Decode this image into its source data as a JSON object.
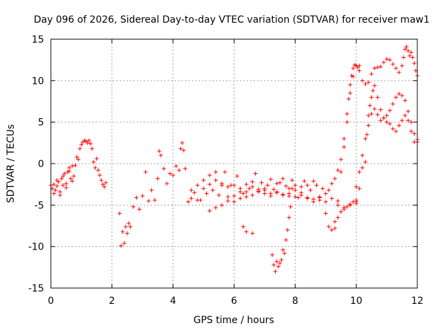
{
  "chart_data": {
    "type": "scatter",
    "title": "Day 096 of 2026, Sidereal Day-to-day VTEC variation (SDTVAR) for receiver maw1",
    "xlabel": "GPS time / hours",
    "ylabel": "SDTVAR / TECUs",
    "xlim": [
      0,
      12
    ],
    "ylim": [
      -15,
      15
    ],
    "xticks": [
      0,
      2,
      4,
      6,
      8,
      10,
      12
    ],
    "yticks": [
      -15,
      -10,
      -5,
      0,
      5,
      10,
      15
    ],
    "grid": true,
    "marker": "+",
    "color": "#ff0000",
    "series": [
      {
        "name": "SDTVAR",
        "x": [
          0.0,
          0.05,
          0.1,
          0.15,
          0.2,
          0.25,
          0.3,
          0.35,
          0.4,
          0.45,
          0.5,
          0.55,
          0.6,
          0.65,
          0.7,
          0.75,
          0.8,
          0.85,
          0.9,
          0.95,
          1.0,
          1.05,
          1.1,
          1.15,
          1.2,
          1.25,
          1.3,
          1.35,
          1.4,
          1.45,
          1.5,
          1.55,
          1.6,
          1.65,
          1.7,
          1.75,
          1.8,
          0.1,
          0.2,
          0.3,
          0.4,
          0.5,
          0.6,
          0.7,
          2.25,
          2.3,
          2.35,
          2.4,
          2.45,
          2.5,
          2.55,
          2.6,
          2.7,
          2.8,
          2.9,
          3.0,
          3.1,
          3.2,
          3.3,
          3.4,
          3.5,
          3.55,
          3.6,
          3.7,
          3.8,
          3.9,
          4.0,
          4.1,
          4.2,
          4.25,
          4.3,
          4.35,
          4.4,
          4.5,
          4.6,
          4.7,
          4.8,
          4.9,
          5.0,
          5.1,
          5.2,
          5.3,
          5.4,
          5.5,
          5.6,
          5.7,
          5.8,
          5.9,
          6.0,
          6.1,
          6.2,
          6.3,
          6.4,
          6.5,
          6.6,
          6.7,
          6.8,
          6.9,
          7.0,
          7.1,
          7.2,
          7.3,
          7.4,
          7.5,
          7.6,
          7.7,
          7.8,
          7.9,
          8.0,
          8.1,
          8.2,
          8.3,
          8.4,
          8.5,
          8.6,
          8.7,
          8.8,
          8.9,
          9.0,
          9.1,
          9.2,
          9.3,
          9.4,
          9.5,
          9.6,
          9.7,
          9.8,
          9.9,
          10.0,
          10.1,
          4.6,
          4.8,
          5.0,
          5.2,
          5.4,
          5.6,
          5.8,
          6.0,
          6.2,
          6.4,
          6.6,
          6.8,
          7.0,
          7.2,
          7.4,
          7.6,
          7.8,
          8.0,
          8.2,
          8.4,
          8.6,
          8.8,
          9.0,
          9.2,
          9.4,
          9.6,
          9.8,
          10.0,
          5.2,
          5.4,
          5.6,
          5.8,
          6.0,
          6.2,
          6.4,
          6.6,
          6.8,
          7.0,
          7.2,
          7.4,
          7.6,
          7.8,
          8.0,
          8.2,
          8.4,
          8.6,
          8.8,
          9.0,
          9.1,
          9.2,
          9.3,
          9.4,
          9.5,
          9.6,
          9.7,
          9.8,
          9.9,
          10.0,
          7.25,
          7.3,
          7.35,
          7.4,
          7.45,
          7.5,
          7.55,
          7.6,
          7.65,
          7.7,
          7.75,
          7.8,
          7.85,
          7.9,
          6.3,
          6.4,
          6.6,
          9.3,
          9.4,
          9.5,
          9.6,
          9.7,
          9.75,
          9.8,
          9.85,
          9.9,
          9.95,
          10.0,
          10.05,
          10.1,
          10.2,
          10.3,
          10.4,
          10.5,
          10.6,
          10.7,
          10.8,
          10.9,
          11.0,
          11.1,
          11.2,
          11.3,
          11.4,
          11.5,
          11.55,
          11.6,
          11.65,
          11.7,
          11.75,
          11.8,
          11.85,
          11.9,
          11.95,
          12.0,
          10.0,
          10.1,
          10.2,
          10.3,
          10.35,
          10.4,
          10.45,
          10.5,
          10.55,
          10.6,
          10.7,
          10.8,
          10.9,
          11.0,
          11.1,
          11.2,
          11.3,
          11.4,
          11.5,
          11.6,
          11.7,
          11.8,
          11.9,
          12.0,
          10.0,
          10.1,
          10.2,
          10.3,
          10.4,
          10.5,
          10.6,
          10.7,
          10.8,
          10.9,
          11.0,
          11.1,
          11.2,
          11.3,
          11.4,
          11.5,
          11.6,
          11.7,
          11.8,
          11.9,
          12.0
        ],
        "y": [
          -2.6,
          -3.0,
          -2.5,
          -3.2,
          -2.7,
          -2.2,
          -3.4,
          -1.8,
          -2.6,
          -1.2,
          -2.4,
          -1.0,
          -0.5,
          -1.8,
          -0.3,
          -1.5,
          -0.2,
          0.8,
          0.5,
          1.8,
          2.3,
          2.6,
          2.8,
          2.7,
          2.5,
          2.8,
          2.4,
          1.8,
          0.2,
          -0.5,
          0.6,
          -0.8,
          -1.4,
          -2.0,
          -2.5,
          -2.8,
          -2.3,
          -3.6,
          -2.0,
          -3.8,
          -1.5,
          -2.9,
          -0.9,
          -2.1,
          -6.0,
          -9.9,
          -8.2,
          -9.6,
          -7.6,
          -8.4,
          -7.2,
          -7.6,
          -5.2,
          -4.1,
          -5.5,
          -3.9,
          -1.0,
          -4.5,
          -3.2,
          -4.4,
          -1.8,
          1.5,
          1.0,
          -0.6,
          -2.4,
          -1.2,
          -1.4,
          -0.3,
          -0.8,
          1.8,
          2.5,
          1.6,
          -0.6,
          -4.6,
          -4.2,
          -3.5,
          -2.6,
          -4.4,
          -2.0,
          -3.6,
          -1.4,
          -3.2,
          -1.0,
          -3.8,
          -2.4,
          -1.0,
          -4.0,
          -2.6,
          -3.9,
          -1.5,
          -3.4,
          -3.6,
          -2.5,
          -3.0,
          -2.2,
          -1.2,
          -3.1,
          -2.3,
          -3.6,
          -2.6,
          -1.9,
          -3.1,
          -2.4,
          -2.3,
          -1.8,
          -2.7,
          -3.0,
          -2.0,
          -3.2,
          -4.1,
          -2.8,
          -2.1,
          -2.6,
          -3.2,
          -2.1,
          -2.6,
          -4.1,
          -3.0,
          -3.6,
          -3.2,
          -2.4,
          -1.8,
          -0.8,
          0.5,
          3.0,
          6.0,
          8.5,
          10.5,
          11.8,
          11.8,
          -3.2,
          -4.4,
          -3.0,
          -2.5,
          -2.0,
          -2.6,
          -2.8,
          -2.6,
          -3.0,
          -3.4,
          -2.8,
          -3.3,
          -3.0,
          -3.9,
          -3.5,
          -3.8,
          -3.6,
          -2.6,
          -3.5,
          -4.1,
          -4.3,
          -4.0,
          -4.6,
          -4.2,
          -5.0,
          -5.3,
          -4.9,
          -4.6,
          -5.7,
          -5.3,
          -5.0,
          -4.5,
          -4.6,
          -4.2,
          -4.0,
          -3.8,
          -3.4,
          -3.2,
          -3.6,
          -3.4,
          -3.7,
          -3.9,
          -4.0,
          -3.8,
          -4.2,
          -4.6,
          -4.4,
          -6.0,
          -7.6,
          -8.0,
          -7.8,
          -6.5,
          -5.8,
          -5.5,
          -5.2,
          -5.0,
          -4.6,
          -4.4,
          -11.0,
          -12.2,
          -13.0,
          -11.8,
          -12.4,
          -12.0,
          -11.6,
          -10.4,
          -10.8,
          -9.2,
          -8.0,
          -6.5,
          -5.2,
          -3.0,
          -7.6,
          -8.2,
          -8.4,
          -7.0,
          -4.5,
          -1.0,
          2.0,
          5.0,
          7.8,
          9.5,
          10.6,
          11.5,
          11.9,
          11.8,
          11.6,
          11.2,
          10.0,
          9.6,
          9.8,
          10.8,
          11.5,
          11.6,
          11.7,
          12.2,
          12.6,
          12.5,
          12.0,
          11.5,
          11.0,
          11.8,
          12.8,
          13.8,
          14.1,
          13.6,
          13.0,
          13.4,
          12.8,
          12.1,
          11.2,
          10.6,
          -4.8,
          -3.0,
          -0.5,
          0.2,
          3.5,
          5.8,
          7.0,
          8.0,
          8.8,
          9.4,
          8.0,
          6.5,
          5.5,
          5.0,
          4.8,
          4.2,
          3.9,
          4.6,
          5.2,
          5.8,
          5.2,
          3.9,
          2.6,
          2.9,
          -2.8,
          -1.0,
          1.0,
          3.0,
          4.6,
          6.0,
          6.6,
          5.9,
          5.2,
          5.5,
          5.8,
          6.4,
          7.2,
          8.0,
          8.4,
          8.2,
          7.6,
          6.3,
          5.0,
          3.6,
          2.6
        ]
      }
    ]
  }
}
